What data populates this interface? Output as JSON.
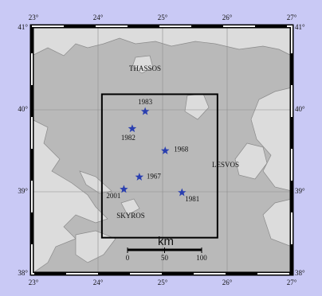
{
  "map": {
    "lonlim": [
      23,
      27
    ],
    "latlim": [
      38,
      41
    ],
    "lonticks": [
      {
        "value": 23,
        "label": "23°"
      },
      {
        "value": 24,
        "label": "24°"
      },
      {
        "value": 25,
        "label": "25°"
      },
      {
        "value": 26,
        "label": "26°"
      },
      {
        "value": 27,
        "label": "27°"
      }
    ],
    "latticks": [
      {
        "value": 38,
        "label": "38°"
      },
      {
        "value": 39,
        "label": "39°"
      },
      {
        "value": 40,
        "label": "40°"
      },
      {
        "value": 41,
        "label": "41°"
      }
    ],
    "places": [
      "THASSOS",
      "LESVOS",
      "SKYROS"
    ],
    "box": {
      "lon": [
        24.06,
        25.85
      ],
      "lat": [
        38.44,
        40.19
      ]
    },
    "events": [
      {
        "label": "1983",
        "lon": 24.73,
        "lat": 39.98
      },
      {
        "label": "1982",
        "lon": 24.53,
        "lat": 39.77
      },
      {
        "label": "1968",
        "lon": 25.04,
        "lat": 39.5
      },
      {
        "label": "1967",
        "lon": 24.64,
        "lat": 39.18
      },
      {
        "label": "2001",
        "lon": 24.4,
        "lat": 39.03
      },
      {
        "label": "1981",
        "lon": 25.3,
        "lat": 38.99
      }
    ],
    "scale": {
      "unit": "km",
      "ticks": [
        0,
        50,
        100
      ]
    },
    "star_color": "#2a3fb0"
  }
}
